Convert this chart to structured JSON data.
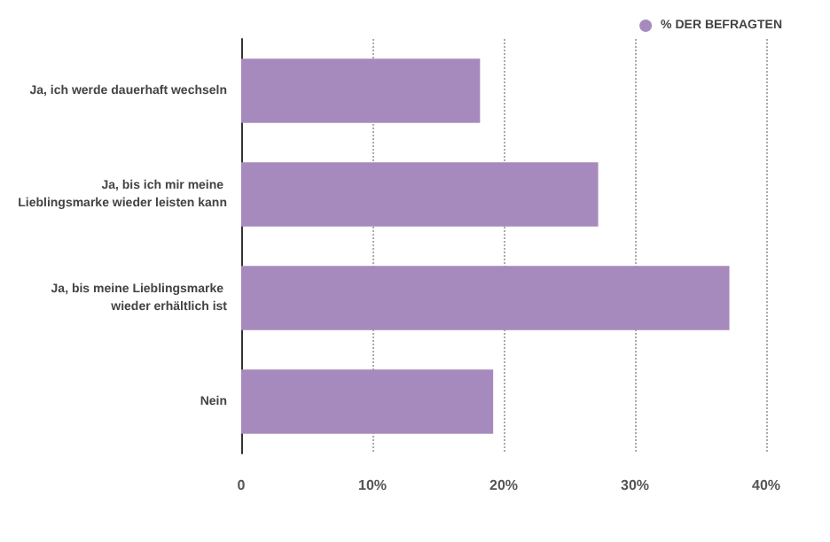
{
  "chart_data": {
    "type": "bar",
    "orientation": "horizontal",
    "categories": [
      "Ja, ich werde dauerhaft wechseln",
      "Ja, bis ich mir meine Lieblingsmarke wieder leisten kann",
      "Ja, bis meine Lieblingsmarke wieder erhältlich ist",
      "Nein"
    ],
    "series": [
      {
        "name": "% DER BEFRAGTEN",
        "color": "#a78abd",
        "values": [
          18.2,
          27.2,
          37.2,
          19.2
        ]
      }
    ],
    "xlim": [
      0,
      40
    ],
    "xticks": [
      0,
      {
        "value": 10,
        "label": "10%"
      },
      {
        "value": 20,
        "label": "20%"
      },
      {
        "value": 30,
        "label": "30%"
      },
      {
        "value": 40,
        "label": "40%"
      }
    ],
    "grid": "x",
    "legend": "top right"
  }
}
